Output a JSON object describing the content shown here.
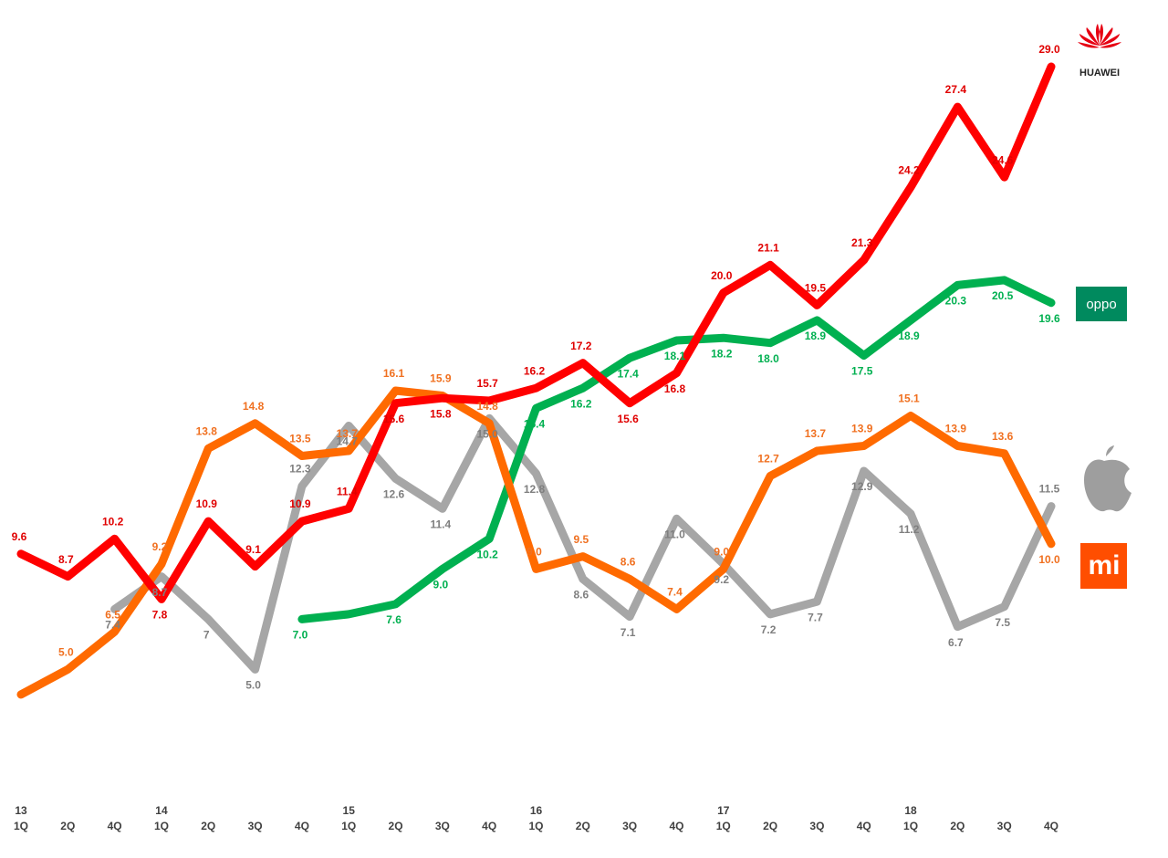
{
  "chart_data": {
    "type": "line",
    "categories": [
      "1Q",
      "2Q",
      "4Q",
      "1Q",
      "2Q",
      "3Q",
      "4Q",
      "1Q",
      "2Q",
      "3Q",
      "4Q",
      "1Q",
      "2Q",
      "3Q",
      "4Q",
      "1Q",
      "2Q",
      "3Q",
      "4Q",
      "1Q",
      "2Q",
      "3Q",
      "4Q"
    ],
    "years": [
      "13",
      null,
      null,
      "14",
      null,
      null,
      null,
      "15",
      null,
      null,
      null,
      "16",
      null,
      null,
      null,
      "17",
      null,
      null,
      null,
      "18",
      null,
      null,
      null
    ],
    "ylim": [
      0,
      31
    ],
    "series": [
      {
        "color": "#a6a6a6",
        "label_color": "#7f7f7f",
        "values": [
          null,
          null,
          7.4,
          8.7,
          7,
          5.0,
          12.3,
          14.7,
          12.6,
          11.4,
          15.0,
          12.8,
          8.6,
          7.1,
          11.0,
          9.2,
          7.2,
          7.7,
          12.9,
          11.2,
          6.7,
          7.5,
          11.5
        ],
        "value_labels": [
          null,
          null,
          "7.4",
          "8.7",
          "7",
          "5.0",
          "12.3",
          "14.7",
          "12.6",
          "11.4",
          "15.0",
          "12.8",
          "8.6",
          "7.1",
          "11.0",
          "9.2",
          "7.2",
          "7.7",
          "12.9",
          "11.2",
          "6.7",
          "7.5",
          "11.5"
        ]
      },
      {
        "name": "oppo",
        "color": "#00b050",
        "label_color": "#00b050",
        "values": [
          null,
          null,
          null,
          null,
          null,
          null,
          7.0,
          7.2,
          7.6,
          9.0,
          10.2,
          15.4,
          16.2,
          17.4,
          18.1,
          18.2,
          18.0,
          18.9,
          17.5,
          18.9,
          20.3,
          20.5,
          19.6
        ],
        "value_labels": [
          null,
          null,
          null,
          null,
          null,
          null,
          "7.0",
          null,
          "7.6",
          "9.0",
          "10.2",
          "15.4",
          "16.2",
          "17.4",
          "18.1",
          "18.2",
          "18.0",
          "18.9",
          "17.5",
          "18.9",
          "20.3",
          "20.5",
          "19.6"
        ]
      },
      {
        "name": "mi",
        "color": "#ff6a00",
        "label_color": "#f07020",
        "values": [
          4.0,
          5.0,
          6.5,
          9.2,
          13.8,
          14.8,
          13.5,
          13.7,
          16.1,
          15.9,
          14.8,
          9.0,
          9.5,
          8.6,
          7.4,
          9.0,
          12.7,
          13.7,
          13.9,
          15.1,
          13.9,
          13.6,
          10.0
        ],
        "value_labels": [
          null,
          "5.0",
          "6.5",
          "9.2",
          "13.8",
          "14.8",
          "13.5",
          "13.7",
          "16.1",
          "15.9",
          "14.8",
          "9.0",
          "9.5",
          "8.6",
          "7.4",
          "9.0",
          "12.7",
          "13.7",
          "13.9",
          "15.1",
          "13.9",
          "13.6",
          "10.0"
        ]
      },
      {
        "name": "HUAWEI",
        "color": "#ff0000",
        "label_color": "#e00000",
        "values": [
          9.6,
          8.7,
          10.2,
          7.8,
          10.9,
          9.1,
          10.9,
          11.4,
          15.6,
          15.8,
          15.7,
          16.2,
          17.2,
          15.6,
          16.8,
          20.0,
          21.1,
          19.5,
          21.3,
          24.2,
          27.4,
          24.6,
          29.0
        ],
        "value_labels": [
          "9.6",
          "8.7",
          "10.2",
          "7.8",
          "10.9",
          "9.1",
          "10.9",
          "11.4",
          "15.6",
          "15.8",
          "15.7",
          "16.2",
          "17.2",
          "15.6",
          "16.8",
          "20.0",
          "21.1",
          "19.5",
          "21.3",
          "24.2",
          "27.4",
          "24.6",
          "29.0"
        ]
      }
    ]
  }
}
